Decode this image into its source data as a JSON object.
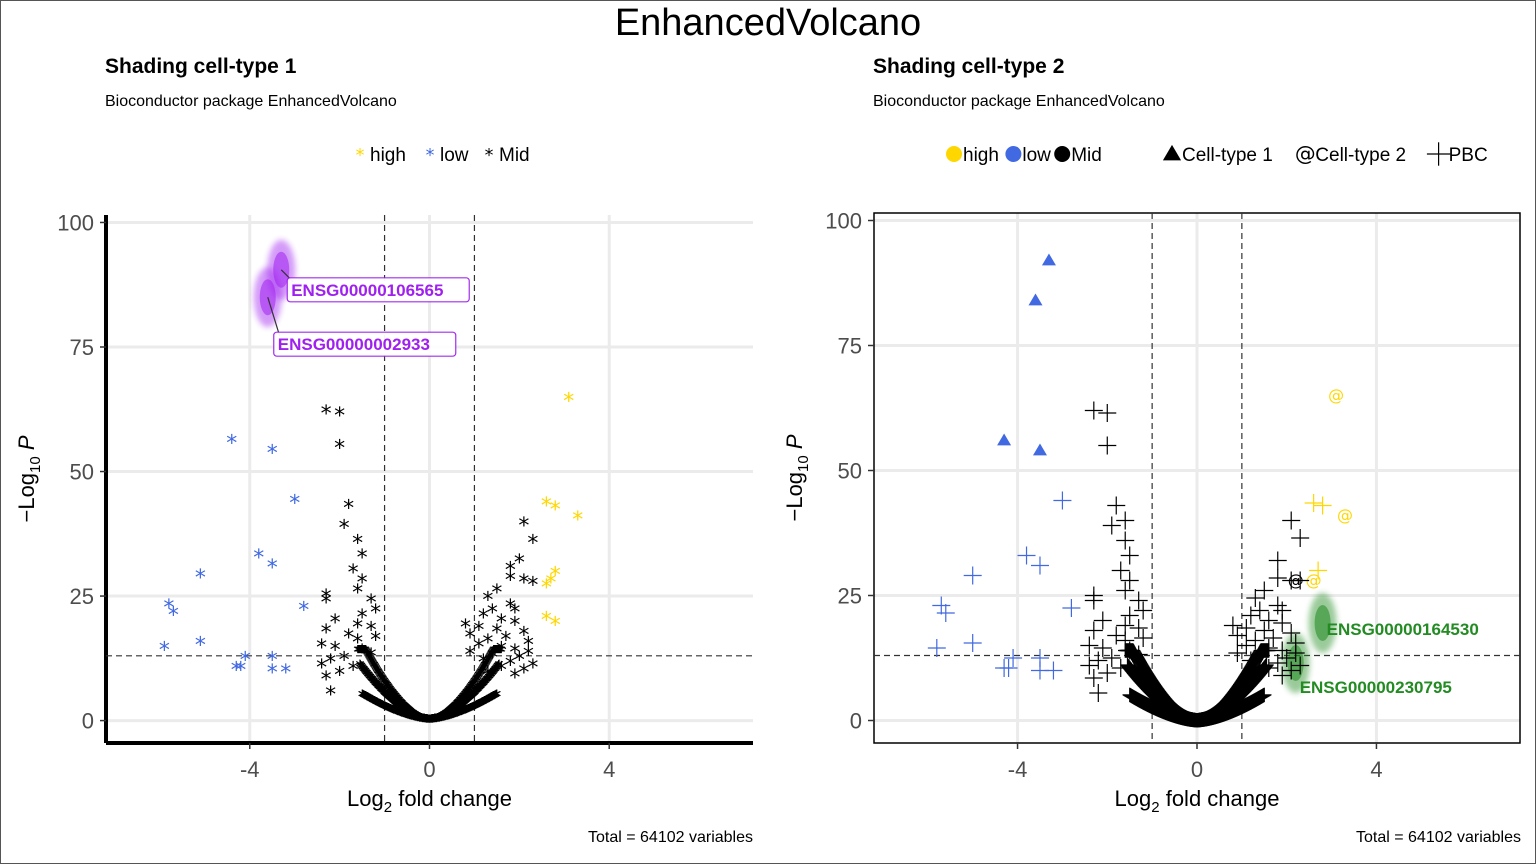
{
  "title": "EnhancedVolcano",
  "chart_data": [
    {
      "type": "scatter",
      "title": "Shading cell-type 1",
      "subtitle": "Bioconductor package EnhancedVolcano",
      "caption": "Total = 64102 variables",
      "xlabel": "Log2 fold change",
      "ylabel": "−Log10 P",
      "xlim": [
        -7.2,
        7.2
      ],
      "ylim": [
        -4.5,
        101.5
      ],
      "x_ticks": [
        "-4",
        "0",
        "4"
      ],
      "y_ticks": [
        "0",
        "25",
        "50",
        "75",
        "100"
      ],
      "fc_cutoff": [
        -1,
        1
      ],
      "p_cutoff": 13,
      "grid": true,
      "legend_position": "top",
      "legend": [
        {
          "label": "high",
          "color": "#FFD700",
          "shape": "asterisk"
        },
        {
          "label": "low",
          "color": "#4169E1",
          "shape": "asterisk"
        },
        {
          "label": "Mid",
          "color": "#000000",
          "shape": "asterisk"
        }
      ],
      "series": [
        {
          "name": "high",
          "color": "#FFD700",
          "points": [
            [
              3.1,
              64.5
            ],
            [
              2.6,
              43.5
            ],
            [
              2.8,
              42.7
            ],
            [
              3.3,
              40.7
            ],
            [
              2.8,
              29.5
            ],
            [
              2.7,
              28
            ],
            [
              2.6,
              27
            ],
            [
              2.6,
              20.5
            ],
            [
              2.8,
              19.5
            ]
          ]
        },
        {
          "name": "low",
          "color": "#4169E1",
          "points": [
            [
              -4.4,
              56
            ],
            [
              -3.5,
              54
            ],
            [
              -3,
              44
            ],
            [
              -3.8,
              33
            ],
            [
              -3.5,
              31
            ],
            [
              -5.1,
              29
            ],
            [
              -5.8,
              23
            ],
            [
              -5.7,
              21.5
            ],
            [
              -2.8,
              22.5
            ],
            [
              -5.1,
              15.5
            ],
            [
              -5.9,
              14.5
            ],
            [
              -3.5,
              12.5
            ],
            [
              -4.1,
              12.5
            ],
            [
              -4.3,
              10.5
            ],
            [
              -4.2,
              10.5
            ],
            [
              -3.5,
              10
            ],
            [
              -3.2,
              10
            ]
          ]
        },
        {
          "name": "Mid",
          "color": "#000000",
          "points": [
            [
              -2.3,
              62
            ],
            [
              -2,
              61.5
            ],
            [
              -2,
              55
            ],
            [
              -1.8,
              43
            ],
            [
              -1.9,
              39
            ],
            [
              -1.6,
              36
            ],
            [
              -1.5,
              33
            ],
            [
              -1.7,
              30
            ],
            [
              -1.5,
              28
            ],
            [
              -1.6,
              26
            ],
            [
              -2.3,
              25
            ],
            [
              -2.3,
              24
            ],
            [
              -1.3,
              24
            ],
            [
              -1.2,
              22
            ],
            [
              -1.5,
              21
            ],
            [
              -2.1,
              20
            ],
            [
              -1.6,
              19
            ],
            [
              -1.3,
              18.5
            ],
            [
              -2.3,
              18
            ],
            [
              -1.8,
              17
            ],
            [
              -1.2,
              16.5
            ],
            [
              -1.6,
              16
            ],
            [
              -2.4,
              15
            ],
            [
              -2.1,
              14.5
            ],
            [
              -1.5,
              14
            ],
            [
              -1.3,
              13.2
            ],
            [
              -1.9,
              12.5
            ],
            [
              -2.2,
              12
            ],
            [
              -2.4,
              11
            ],
            [
              -1.7,
              10.5
            ],
            [
              -2,
              9.5
            ],
            [
              -2.3,
              8.5
            ],
            [
              -2.2,
              5.5
            ],
            [
              2.1,
              39.5
            ],
            [
              2.3,
              36
            ],
            [
              2,
              32
            ],
            [
              1.8,
              30.5
            ],
            [
              1.8,
              28.5
            ],
            [
              2.1,
              28
            ],
            [
              2.3,
              27.5
            ],
            [
              1.5,
              26
            ],
            [
              1.3,
              24.5
            ],
            [
              1.8,
              23
            ],
            [
              1.4,
              22
            ],
            [
              1.9,
              22
            ],
            [
              1.2,
              21
            ],
            [
              1.6,
              20
            ],
            [
              1.9,
              19.5
            ],
            [
              0.8,
              19
            ],
            [
              1.1,
              18.5
            ],
            [
              1.5,
              18
            ],
            [
              2.1,
              17.5
            ],
            [
              0.9,
              17
            ],
            [
              1.7,
              16.5
            ],
            [
              1.3,
              16
            ],
            [
              2.2,
              15.5
            ],
            [
              1.1,
              15
            ],
            [
              1.6,
              14.5
            ],
            [
              1.9,
              14
            ],
            [
              0.9,
              13.5
            ],
            [
              2.2,
              13.5
            ],
            [
              1.4,
              13
            ],
            [
              2,
              12.5
            ],
            [
              1.2,
              12
            ],
            [
              1.8,
              11.5
            ],
            [
              2.3,
              11
            ],
            [
              1.6,
              10.5
            ],
            [
              2.1,
              10
            ],
            [
              1.3,
              9.5
            ],
            [
              1.9,
              9
            ]
          ]
        }
      ],
      "labels": [
        {
          "text": "ENSG00000106565",
          "color": "#A020F0",
          "x": -3.3,
          "y": 90.5
        },
        {
          "text": "ENSG00000002933",
          "color": "#A020F0",
          "x": -3.6,
          "y": 85
        }
      ],
      "shaded": [
        {
          "color": "#A020F0",
          "points": [
            [
              -3.3,
              90.5
            ],
            [
              -3.6,
              85
            ]
          ]
        }
      ]
    },
    {
      "type": "scatter",
      "title": "Shading cell-type 2",
      "subtitle": "Bioconductor package EnhancedVolcano",
      "caption": "Total = 64102 variables",
      "xlabel": "Log2 fold change",
      "ylabel": "−Log10 P",
      "xlim": [
        -7.2,
        7.2
      ],
      "ylim": [
        -4.5,
        101.5
      ],
      "x_ticks": [
        "-4",
        "0",
        "4"
      ],
      "y_ticks": [
        "0",
        "25",
        "50",
        "75",
        "100"
      ],
      "fc_cutoff": [
        -1,
        1
      ],
      "p_cutoff": 13,
      "grid": true,
      "legend_position": "top",
      "legend": [
        {
          "label": "high",
          "color": "#FFD700",
          "shape": "circle"
        },
        {
          "label": "low",
          "color": "#4169E1",
          "shape": "circle"
        },
        {
          "label": "Mid",
          "color": "#000000",
          "shape": "circle"
        }
      ],
      "shape_legend": [
        {
          "label": "Cell-type 1",
          "shape": "triangle"
        },
        {
          "label": "Cell-type 2",
          "shape": "@"
        },
        {
          "label": "PBC",
          "shape": "plus"
        }
      ],
      "series": [
        {
          "name": "low",
          "color": "#4169E1",
          "shape": "triangle",
          "points": [
            [
              -3.3,
              92
            ],
            [
              -3.6,
              84
            ],
            [
              -4.3,
              56
            ],
            [
              -3.5,
              54
            ]
          ]
        },
        {
          "name": "low",
          "color": "#4169E1",
          "shape": "plus",
          "points": [
            [
              -3,
              44
            ],
            [
              -3.8,
              33
            ],
            [
              -3.5,
              31
            ],
            [
              -5,
              29
            ],
            [
              -5.7,
              23
            ],
            [
              -5.6,
              21.5
            ],
            [
              -2.8,
              22.5
            ],
            [
              -5,
              15.5
            ],
            [
              -5.8,
              14.5
            ],
            [
              -3.5,
              12.5
            ],
            [
              -4.1,
              12.5
            ],
            [
              -4.3,
              10.5
            ],
            [
              -4.2,
              10.5
            ],
            [
              -3.5,
              10
            ],
            [
              -3.2,
              10
            ]
          ]
        },
        {
          "name": "high",
          "color": "#FFD700",
          "shape": "@",
          "points": [
            [
              3.1,
              65
            ],
            [
              3.3,
              41
            ],
            [
              2.6,
              28
            ]
          ]
        },
        {
          "name": "high",
          "color": "#FFD700",
          "shape": "plus",
          "points": [
            [
              2.6,
              43.5
            ],
            [
              2.8,
              43
            ],
            [
              2.7,
              30
            ]
          ]
        },
        {
          "name": "Mid",
          "color": "#000000",
          "shape": "@",
          "points": [
            [
              2.2,
              28
            ]
          ]
        },
        {
          "name": "Mid",
          "color": "#000000",
          "shape": "plus",
          "points": [
            [
              -2.3,
              62
            ],
            [
              -2,
              61.5
            ],
            [
              -2,
              55
            ],
            [
              -1.8,
              43
            ],
            [
              -1.9,
              39
            ],
            [
              -1.6,
              40
            ],
            [
              -1.6,
              36
            ],
            [
              -1.5,
              33
            ],
            [
              -1.7,
              30
            ],
            [
              -1.5,
              28
            ],
            [
              -1.6,
              26
            ],
            [
              -2.3,
              25
            ],
            [
              -2.3,
              24
            ],
            [
              -1.3,
              24
            ],
            [
              -1.2,
              22
            ],
            [
              -1.5,
              21
            ],
            [
              -2.1,
              20
            ],
            [
              -1.6,
              19
            ],
            [
              -1.3,
              18.5
            ],
            [
              -2.3,
              18
            ],
            [
              -1.8,
              17
            ],
            [
              -1.2,
              16.5
            ],
            [
              -1.6,
              16
            ],
            [
              -2.4,
              15
            ],
            [
              -2.1,
              14.5
            ],
            [
              -1.5,
              14
            ],
            [
              -1.3,
              13.2
            ],
            [
              -1.9,
              12.5
            ],
            [
              -2.2,
              12
            ],
            [
              -2.4,
              11
            ],
            [
              -1.7,
              10.5
            ],
            [
              -2,
              9.5
            ],
            [
              -2.3,
              8.5
            ],
            [
              -2.2,
              5.5
            ],
            [
              2.1,
              40
            ],
            [
              2.3,
              36.5
            ],
            [
              1.8,
              32
            ],
            [
              1.8,
              28.5
            ],
            [
              2.1,
              28
            ],
            [
              2.3,
              28
            ],
            [
              1.5,
              26
            ],
            [
              1.3,
              24.5
            ],
            [
              1.8,
              23
            ],
            [
              1.4,
              22
            ],
            [
              1.9,
              22
            ],
            [
              1.2,
              21
            ],
            [
              1.6,
              20
            ],
            [
              1.9,
              19.5
            ],
            [
              0.8,
              19
            ],
            [
              1.1,
              18.5
            ],
            [
              1.5,
              18
            ],
            [
              2.1,
              17.5
            ],
            [
              0.9,
              17
            ],
            [
              1.7,
              16.5
            ],
            [
              1.3,
              16
            ],
            [
              2.2,
              15.5
            ],
            [
              1.1,
              15
            ],
            [
              1.6,
              14.5
            ],
            [
              1.9,
              14
            ],
            [
              0.9,
              13.5
            ],
            [
              2.2,
              13.5
            ],
            [
              1.4,
              13
            ],
            [
              2,
              12.5
            ],
            [
              1.2,
              12
            ],
            [
              1.8,
              11.5
            ],
            [
              2.3,
              11
            ],
            [
              1.6,
              10.5
            ],
            [
              2.1,
              10
            ],
            [
              1.3,
              9.5
            ],
            [
              1.9,
              9
            ]
          ]
        }
      ],
      "labels": [
        {
          "text": "ENSG00000164530",
          "color": "#228B22",
          "x": 2.8,
          "y": 19.5
        },
        {
          "text": "ENSG00000230795",
          "color": "#228B22",
          "x": 2.2,
          "y": 11.5
        }
      ],
      "shaded": [
        {
          "color": "#228B22",
          "points": [
            [
              2.8,
              19.5
            ],
            [
              2.2,
              11.5
            ]
          ]
        }
      ]
    }
  ]
}
